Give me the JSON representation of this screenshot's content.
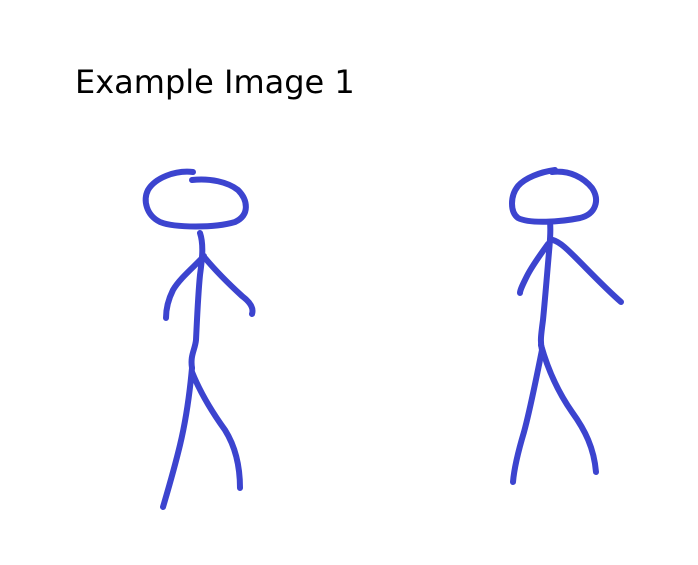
{
  "title": "Example Image 1",
  "stroke_color": "#3c44cf",
  "figures": [
    {
      "name": "stick-figure-left",
      "icon": "stick-figure-icon"
    },
    {
      "name": "stick-figure-right",
      "icon": "stick-figure-icon"
    }
  ]
}
